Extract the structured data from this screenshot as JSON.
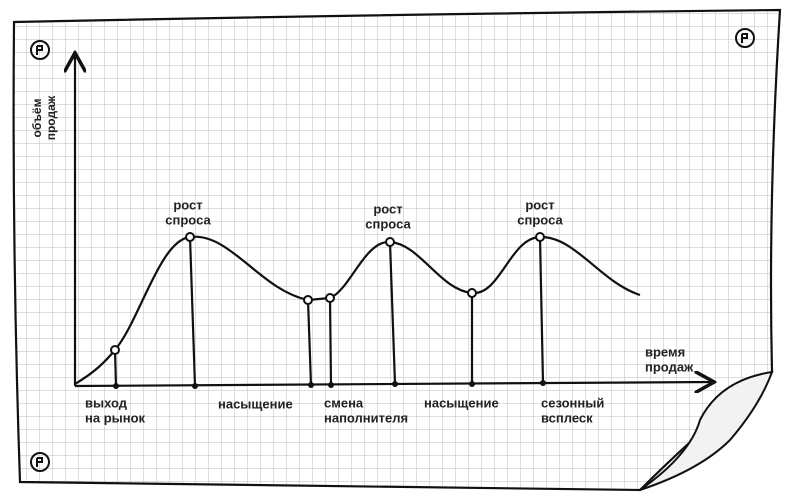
{
  "y_axis_label": [
    "объём",
    "продаж"
  ],
  "x_axis_label": [
    "время",
    "продаж"
  ],
  "peak_labels": [
    [
      "рост",
      "спроса"
    ],
    [
      "рост",
      "спроса"
    ],
    [
      "рост",
      "спроса"
    ]
  ],
  "stage_labels": [
    [
      "выход",
      "на рынок"
    ],
    [
      "насыщение"
    ],
    [
      "смена",
      "наполнителя"
    ],
    [
      "насыщение"
    ],
    [
      "сезонный",
      "всплеск"
    ]
  ]
}
